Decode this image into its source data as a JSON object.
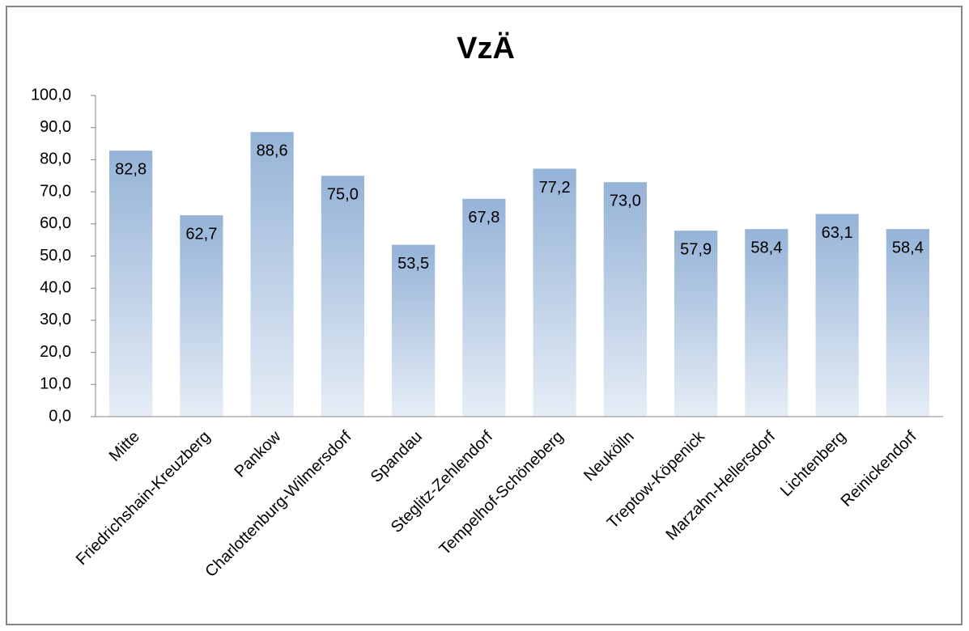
{
  "chart_data": {
    "type": "bar",
    "title": "VzÄ",
    "categories": [
      "Mitte",
      "Friedrichshain-Kreuzberg",
      "Pankow",
      "Charlottenburg-Wilmersdorf",
      "Spandau",
      "Steglitz-Zehlendorf",
      "Tempelhof-Schöneberg",
      "Neukölln",
      "Treptow-Köpenick",
      "Marzahn-Hellersdorf",
      "Lichtenberg",
      "Reinickendorf"
    ],
    "values": [
      82.8,
      62.7,
      88.6,
      75.0,
      53.5,
      67.8,
      77.2,
      73.0,
      57.9,
      58.4,
      63.1,
      58.4
    ],
    "value_labels": [
      "82,8",
      "62,7",
      "88,6",
      "75,0",
      "53,5",
      "67,8",
      "77,2",
      "73,0",
      "57,9",
      "58,4",
      "63,1",
      "58,4"
    ],
    "color": "#95b3d7",
    "ylim": [
      0,
      100
    ],
    "yticks": [
      {
        "value": 0,
        "label": "0,0"
      },
      {
        "value": 10,
        "label": "10,0"
      },
      {
        "value": 20,
        "label": "20,0"
      },
      {
        "value": 30,
        "label": "30,0"
      },
      {
        "value": 40,
        "label": "40,0"
      },
      {
        "value": 50,
        "label": "50,0"
      },
      {
        "value": 60,
        "label": "60,0"
      },
      {
        "value": 70,
        "label": "70,0"
      },
      {
        "value": 80,
        "label": "80,0"
      },
      {
        "value": 90,
        "label": "90,0"
      },
      {
        "value": 100,
        "label": "100,0"
      }
    ]
  }
}
